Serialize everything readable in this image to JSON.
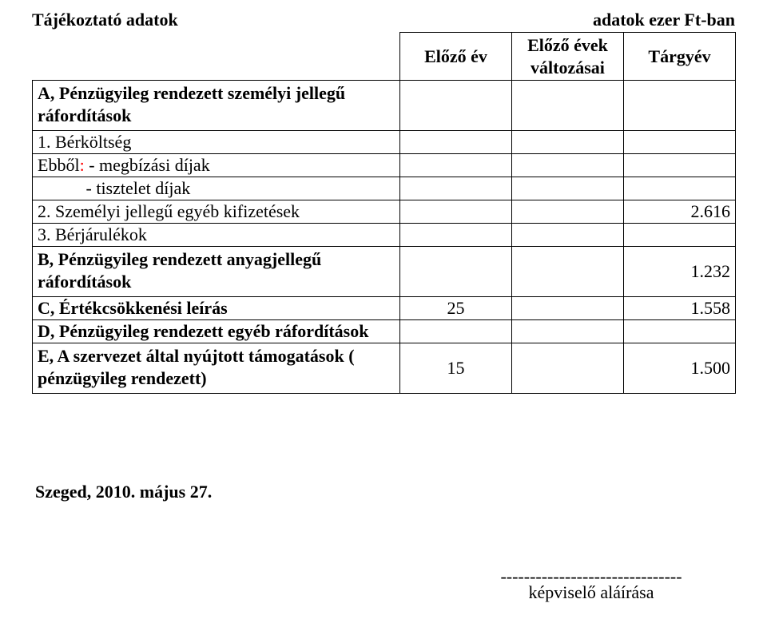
{
  "header": {
    "title_left": "Tájékoztató adatok",
    "title_right": "adatok ezer Ft-ban"
  },
  "table": {
    "columns": {
      "c1": "Előző év",
      "c2_line1": "Előző évek",
      "c2_line2": "változásai",
      "c3": "Tárgyév"
    },
    "rows": {
      "r0": {
        "label_l1": "A, Pénzügyileg rendezett személyi jellegű",
        "label_l2": "ráfordítások",
        "v1": "",
        "v2": "",
        "v3": ""
      },
      "r1": {
        "label": "1. Bérköltség",
        "v1": "",
        "v2": "",
        "v3": ""
      },
      "r2": {
        "label_prefix": " Ebből",
        "label_colon": ":",
        "label_rest": " - megbízási díjak",
        "v1": "",
        "v2": "",
        "v3": ""
      },
      "r3": {
        "label": "           - tisztelet díjak",
        "v1": "",
        "v2": "",
        "v3": ""
      },
      "r4": {
        "label": "2. Személyi jellegű egyéb kifizetések",
        "v1": "",
        "v2": "",
        "v3": "2.616"
      },
      "r5": {
        "label": "3. Bérjárulékok",
        "v1": "",
        "v2": "",
        "v3": ""
      },
      "r6": {
        "label_l1": "B, Pénzügyileg rendezett anyagjellegű",
        "label_l2": "ráfordítások",
        "v1": "",
        "v2": "",
        "v3": "1.232"
      },
      "r7": {
        "label": "C, Értékcsökkenési leírás",
        "v1": "25",
        "v2": "",
        "v3": "1.558"
      },
      "r8": {
        "label": "D, Pénzügyileg rendezett egyéb ráfordítások",
        "v1": "",
        "v2": "",
        "v3": ""
      },
      "r9": {
        "label_l1": "E, A szervezet által nyújtott támogatások (",
        "label_l2": "pénzügyileg rendezett)",
        "v1": "15",
        "v2": "",
        "v3": "1.500"
      }
    }
  },
  "footer": {
    "date": "Szeged, 2010. május 27.",
    "dashes": "-------------------------------",
    "signature_label": "képviselő aláírása"
  }
}
